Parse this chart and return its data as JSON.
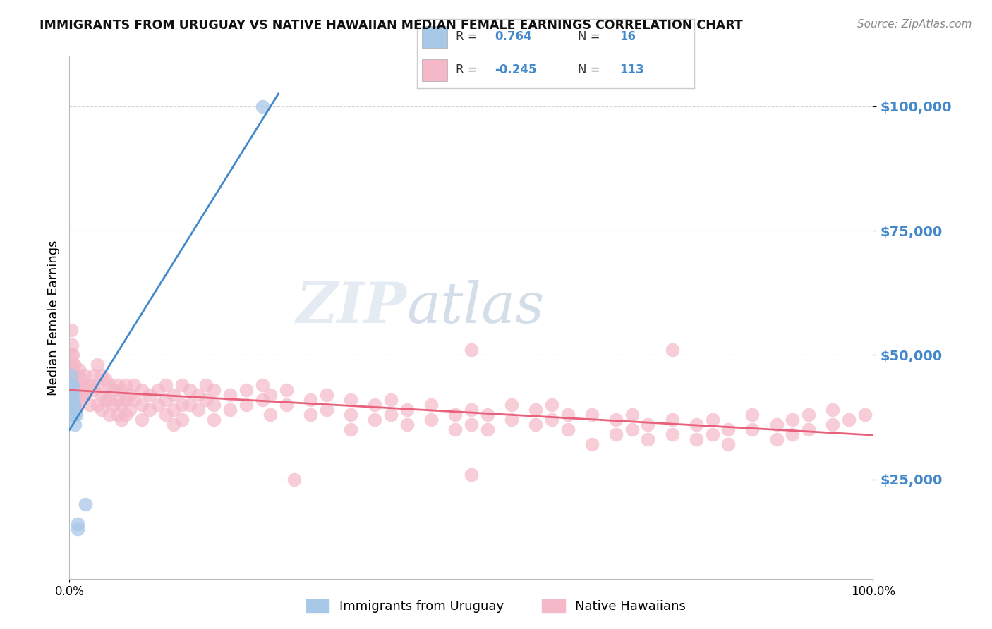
{
  "title": "IMMIGRANTS FROM URUGUAY VS NATIVE HAWAIIAN MEDIAN FEMALE EARNINGS CORRELATION CHART",
  "source_text": "Source: ZipAtlas.com",
  "ylabel": "Median Female Earnings",
  "xlim": [
    0.0,
    1.0
  ],
  "ylim": [
    5000,
    110000
  ],
  "yticks": [
    25000,
    50000,
    75000,
    100000
  ],
  "ytick_labels": [
    "$25,000",
    "$50,000",
    "$75,000",
    "$100,000"
  ],
  "xtick_positions": [
    0.0,
    1.0
  ],
  "xtick_labels": [
    "0.0%",
    "100.0%"
  ],
  "color_blue": "#a8c8e8",
  "color_pink": "#f4b8c8",
  "color_blue_line": "#4488cc",
  "color_pink_line": "#e8607a",
  "watermark_zip": "#c8d8e8",
  "watermark_atlas": "#a8c0d8",
  "background_color": "#ffffff",
  "grid_color": "#cccccc",
  "uruguay_points": [
    [
      0.002,
      42000
    ],
    [
      0.002,
      38000
    ],
    [
      0.002,
      44000
    ],
    [
      0.002,
      46000
    ],
    [
      0.003,
      40000
    ],
    [
      0.003,
      42000
    ],
    [
      0.004,
      44000
    ],
    [
      0.005,
      40000
    ],
    [
      0.005,
      42000
    ],
    [
      0.006,
      38000
    ],
    [
      0.006,
      40000
    ],
    [
      0.007,
      36000
    ],
    [
      0.008,
      38000
    ],
    [
      0.01,
      16000
    ],
    [
      0.02,
      20000
    ],
    [
      0.24,
      100000
    ],
    [
      0.01,
      15000
    ]
  ],
  "hawaiian_points": [
    [
      0.002,
      55000
    ],
    [
      0.002,
      50000
    ],
    [
      0.002,
      48000
    ],
    [
      0.002,
      44000
    ],
    [
      0.003,
      52000
    ],
    [
      0.003,
      48000
    ],
    [
      0.003,
      44000
    ],
    [
      0.003,
      40000
    ],
    [
      0.004,
      50000
    ],
    [
      0.004,
      46000
    ],
    [
      0.004,
      43000
    ],
    [
      0.004,
      40000
    ],
    [
      0.005,
      48000
    ],
    [
      0.005,
      44000
    ],
    [
      0.005,
      42000
    ],
    [
      0.005,
      40000
    ],
    [
      0.006,
      48000
    ],
    [
      0.006,
      44000
    ],
    [
      0.006,
      42000
    ],
    [
      0.007,
      46000
    ],
    [
      0.007,
      43000
    ],
    [
      0.007,
      40000
    ],
    [
      0.008,
      45000
    ],
    [
      0.008,
      42000
    ],
    [
      0.008,
      39000
    ],
    [
      0.01,
      46000
    ],
    [
      0.01,
      43000
    ],
    [
      0.01,
      40000
    ],
    [
      0.012,
      47000
    ],
    [
      0.012,
      44000
    ],
    [
      0.015,
      45000
    ],
    [
      0.015,
      42000
    ],
    [
      0.018,
      46000
    ],
    [
      0.018,
      43000
    ],
    [
      0.02,
      44000
    ],
    [
      0.02,
      42000
    ],
    [
      0.025,
      44000
    ],
    [
      0.025,
      40000
    ],
    [
      0.03,
      46000
    ],
    [
      0.03,
      43000
    ],
    [
      0.035,
      48000
    ],
    [
      0.035,
      44000
    ],
    [
      0.035,
      40000
    ],
    [
      0.04,
      46000
    ],
    [
      0.04,
      42000
    ],
    [
      0.04,
      39000
    ],
    [
      0.045,
      45000
    ],
    [
      0.045,
      41000
    ],
    [
      0.05,
      44000
    ],
    [
      0.05,
      41000
    ],
    [
      0.05,
      38000
    ],
    [
      0.055,
      43000
    ],
    [
      0.055,
      40000
    ],
    [
      0.06,
      44000
    ],
    [
      0.06,
      41000
    ],
    [
      0.06,
      38000
    ],
    [
      0.065,
      43000
    ],
    [
      0.065,
      40000
    ],
    [
      0.065,
      37000
    ],
    [
      0.07,
      44000
    ],
    [
      0.07,
      41000
    ],
    [
      0.07,
      38000
    ],
    [
      0.075,
      42000
    ],
    [
      0.075,
      39000
    ],
    [
      0.08,
      44000
    ],
    [
      0.08,
      41000
    ],
    [
      0.09,
      43000
    ],
    [
      0.09,
      40000
    ],
    [
      0.09,
      37000
    ],
    [
      0.1,
      42000
    ],
    [
      0.1,
      39000
    ],
    [
      0.11,
      43000
    ],
    [
      0.11,
      40000
    ],
    [
      0.12,
      44000
    ],
    [
      0.12,
      41000
    ],
    [
      0.12,
      38000
    ],
    [
      0.13,
      42000
    ],
    [
      0.13,
      39000
    ],
    [
      0.13,
      36000
    ],
    [
      0.14,
      44000
    ],
    [
      0.14,
      40000
    ],
    [
      0.14,
      37000
    ],
    [
      0.15,
      43000
    ],
    [
      0.15,
      40000
    ],
    [
      0.16,
      42000
    ],
    [
      0.16,
      39000
    ],
    [
      0.17,
      44000
    ],
    [
      0.17,
      41000
    ],
    [
      0.18,
      43000
    ],
    [
      0.18,
      40000
    ],
    [
      0.18,
      37000
    ],
    [
      0.2,
      42000
    ],
    [
      0.2,
      39000
    ],
    [
      0.22,
      43000
    ],
    [
      0.22,
      40000
    ],
    [
      0.24,
      44000
    ],
    [
      0.24,
      41000
    ],
    [
      0.25,
      42000
    ],
    [
      0.25,
      38000
    ],
    [
      0.27,
      43000
    ],
    [
      0.27,
      40000
    ],
    [
      0.3,
      41000
    ],
    [
      0.3,
      38000
    ],
    [
      0.32,
      42000
    ],
    [
      0.32,
      39000
    ],
    [
      0.35,
      41000
    ],
    [
      0.35,
      38000
    ],
    [
      0.35,
      35000
    ],
    [
      0.38,
      40000
    ],
    [
      0.38,
      37000
    ],
    [
      0.4,
      41000
    ],
    [
      0.4,
      38000
    ],
    [
      0.42,
      39000
    ],
    [
      0.42,
      36000
    ],
    [
      0.45,
      40000
    ],
    [
      0.45,
      37000
    ],
    [
      0.48,
      38000
    ],
    [
      0.48,
      35000
    ],
    [
      0.5,
      39000
    ],
    [
      0.5,
      36000
    ],
    [
      0.52,
      38000
    ],
    [
      0.52,
      35000
    ],
    [
      0.55,
      40000
    ],
    [
      0.55,
      37000
    ],
    [
      0.58,
      39000
    ],
    [
      0.58,
      36000
    ],
    [
      0.6,
      40000
    ],
    [
      0.6,
      37000
    ],
    [
      0.62,
      38000
    ],
    [
      0.62,
      35000
    ],
    [
      0.65,
      38000
    ],
    [
      0.65,
      32000
    ],
    [
      0.68,
      37000
    ],
    [
      0.68,
      34000
    ],
    [
      0.7,
      38000
    ],
    [
      0.7,
      35000
    ],
    [
      0.72,
      36000
    ],
    [
      0.72,
      33000
    ],
    [
      0.75,
      37000
    ],
    [
      0.75,
      34000
    ],
    [
      0.78,
      36000
    ],
    [
      0.78,
      33000
    ],
    [
      0.8,
      37000
    ],
    [
      0.8,
      34000
    ],
    [
      0.82,
      35000
    ],
    [
      0.82,
      32000
    ],
    [
      0.85,
      38000
    ],
    [
      0.85,
      35000
    ],
    [
      0.88,
      36000
    ],
    [
      0.88,
      33000
    ],
    [
      0.9,
      37000
    ],
    [
      0.9,
      34000
    ],
    [
      0.92,
      38000
    ],
    [
      0.92,
      35000
    ],
    [
      0.95,
      39000
    ],
    [
      0.95,
      36000
    ],
    [
      0.97,
      37000
    ],
    [
      0.99,
      38000
    ],
    [
      0.28,
      25000
    ],
    [
      0.5,
      26000
    ],
    [
      0.5,
      51000
    ],
    [
      0.75,
      51000
    ]
  ]
}
